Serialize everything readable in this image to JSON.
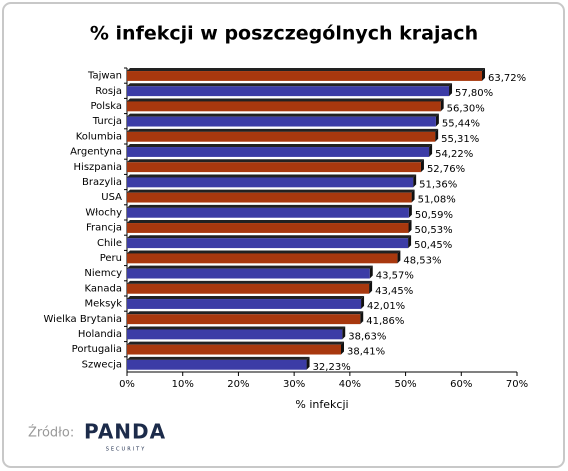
{
  "chart_data": {
    "type": "barh",
    "title": "% infekcji w poszczególnych krajach",
    "xlabel": "% infekcji",
    "categories": [
      "Tajwan",
      "Rosja",
      "Polska",
      "Turcja",
      "Kolumbia",
      "Argentyna",
      "Hiszpania",
      "Brazylia",
      "USA",
      "Włochy",
      "Francja",
      "Chile",
      "Peru",
      "Niemcy",
      "Kanada",
      "Meksyk",
      "Wielka Brytania",
      "Holandia",
      "Portugalia",
      "Szwecja"
    ],
    "values": [
      63.72,
      57.8,
      56.3,
      55.44,
      55.31,
      54.22,
      52.76,
      51.36,
      51.08,
      50.59,
      50.53,
      50.45,
      48.53,
      43.57,
      43.45,
      42.01,
      41.86,
      38.63,
      38.41,
      32.23
    ],
    "value_labels": [
      "63,72%",
      "57,80%",
      "56,30%",
      "55,44%",
      "55,31%",
      "54,22%",
      "52,76%",
      "51,36%",
      "51,08%",
      "50,59%",
      "50,53%",
      "50,45%",
      "48,53%",
      "43,57%",
      "43,45%",
      "42,01%",
      "41,86%",
      "38,63%",
      "38,41%",
      "32,23%"
    ],
    "colors": [
      "#a8380e",
      "#3c3ca6"
    ],
    "xlim": [
      0,
      70
    ],
    "xticks": [
      {
        "value": 0,
        "label": "0%"
      },
      {
        "value": 10,
        "label": "10%"
      },
      {
        "value": 20,
        "label": "20%"
      },
      {
        "value": 30,
        "label": "30%"
      },
      {
        "value": 40,
        "label": "40%"
      },
      {
        "value": 50,
        "label": "50%"
      },
      {
        "value": 60,
        "label": "60%"
      },
      {
        "value": 70,
        "label": "70%"
      }
    ],
    "source_label": "Źródło:",
    "source_logo": "PANDA",
    "source_logo_sub": "SECURITY"
  }
}
